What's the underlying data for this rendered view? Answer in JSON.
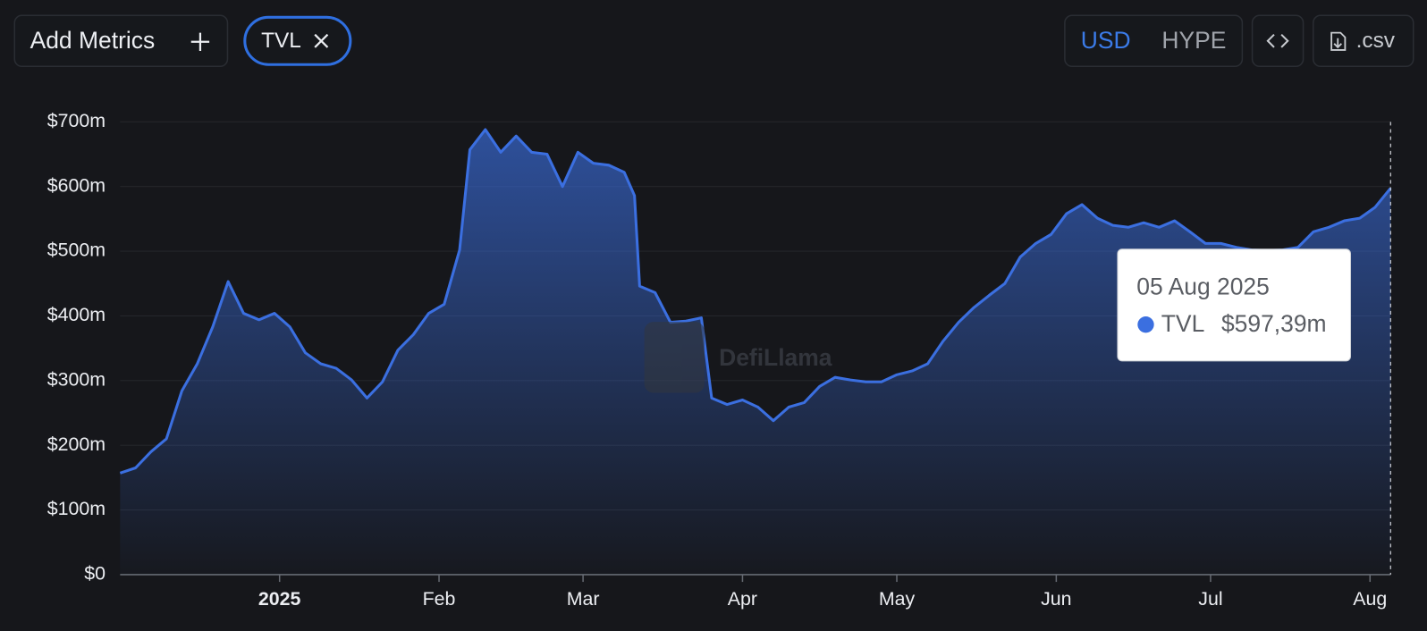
{
  "toolbar": {
    "add_metrics": "Add Metrics",
    "metric_chip": "TVL",
    "currency_options": [
      "USD",
      "HYPE"
    ],
    "export": ".csv"
  },
  "watermark": "DefiLlama",
  "chart_data": {
    "type": "area",
    "x": [
      "2024-12-01",
      "2024-12-04",
      "2024-12-07",
      "2024-12-10",
      "2024-12-13",
      "2024-12-16",
      "2024-12-19",
      "2024-12-22",
      "2024-12-25",
      "2024-12-28",
      "2024-12-31",
      "2025-01-03",
      "2025-01-06",
      "2025-01-09",
      "2025-01-12",
      "2025-01-15",
      "2025-01-18",
      "2025-01-21",
      "2025-01-24",
      "2025-01-27",
      "2025-01-30",
      "2025-02-02",
      "2025-02-05",
      "2025-02-07",
      "2025-02-10",
      "2025-02-13",
      "2025-02-16",
      "2025-02-19",
      "2025-02-22",
      "2025-02-25",
      "2025-02-28",
      "2025-03-03",
      "2025-03-06",
      "2025-03-09",
      "2025-03-11",
      "2025-03-12",
      "2025-03-15",
      "2025-03-18",
      "2025-03-21",
      "2025-03-24",
      "2025-03-26",
      "2025-03-29",
      "2025-04-01",
      "2025-04-04",
      "2025-04-07",
      "2025-04-10",
      "2025-04-13",
      "2025-04-16",
      "2025-04-19",
      "2025-04-22",
      "2025-04-25",
      "2025-04-28",
      "2025-05-01",
      "2025-05-04",
      "2025-05-07",
      "2025-05-10",
      "2025-05-13",
      "2025-05-16",
      "2025-05-19",
      "2025-05-22",
      "2025-05-25",
      "2025-05-28",
      "2025-05-31",
      "2025-06-03",
      "2025-06-06",
      "2025-06-09",
      "2025-06-12",
      "2025-06-15",
      "2025-06-18",
      "2025-06-21",
      "2025-06-24",
      "2025-06-27",
      "2025-06-30",
      "2025-07-03",
      "2025-07-06",
      "2025-07-09",
      "2025-07-12",
      "2025-07-15",
      "2025-07-18",
      "2025-07-21",
      "2025-07-24",
      "2025-07-27",
      "2025-07-30",
      "2025-08-02",
      "2025-08-05"
    ],
    "series": [
      {
        "name": "TVL",
        "color": "#3b6fe0",
        "values": [
          157,
          165,
          190,
          210,
          284,
          326,
          383,
          453,
          404,
          394,
          404,
          383,
          343,
          326,
          319,
          301,
          273,
          298,
          347,
          371,
          404,
          418,
          502,
          657,
          688,
          653,
          678,
          653,
          650,
          600,
          653,
          636,
          633,
          622,
          586,
          446,
          436,
          390,
          392,
          397,
          273,
          263,
          270,
          259,
          238,
          259,
          266,
          291,
          305,
          301,
          298,
          298,
          309,
          315,
          326,
          361,
          390,
          413,
          432,
          450,
          491,
          512,
          526,
          558,
          572,
          551,
          540,
          537,
          544,
          537,
          547,
          530,
          512,
          512,
          506,
          502,
          501,
          502,
          506,
          530,
          537,
          547,
          551,
          568,
          597.39
        ]
      }
    ],
    "xlim": [
      "2024-12-01",
      "2025-08-05"
    ],
    "xticks": [
      {
        "value": "2025-01-01",
        "label": "2025"
      },
      {
        "value": "2025-02-01",
        "label": "Feb"
      },
      {
        "value": "2025-03-01",
        "label": "Mar"
      },
      {
        "value": "2025-04-01",
        "label": "Apr"
      },
      {
        "value": "2025-05-01",
        "label": "May"
      },
      {
        "value": "2025-06-01",
        "label": "Jun"
      },
      {
        "value": "2025-07-01",
        "label": "Jul"
      },
      {
        "value": "2025-08-01",
        "label": "Aug"
      }
    ],
    "ylim": [
      0,
      700
    ],
    "yticks": [
      {
        "value": 0,
        "label": "$0"
      },
      {
        "value": 100,
        "label": "$100m"
      },
      {
        "value": 200,
        "label": "$200m"
      },
      {
        "value": 300,
        "label": "$300m"
      },
      {
        "value": 400,
        "label": "$400m"
      },
      {
        "value": 500,
        "label": "$500m"
      },
      {
        "value": 600,
        "label": "$600m"
      },
      {
        "value": 700,
        "label": "$700m"
      }
    ],
    "grid": true,
    "tooltip": {
      "date": "05 Aug 2025",
      "value": "$597,39m"
    }
  }
}
